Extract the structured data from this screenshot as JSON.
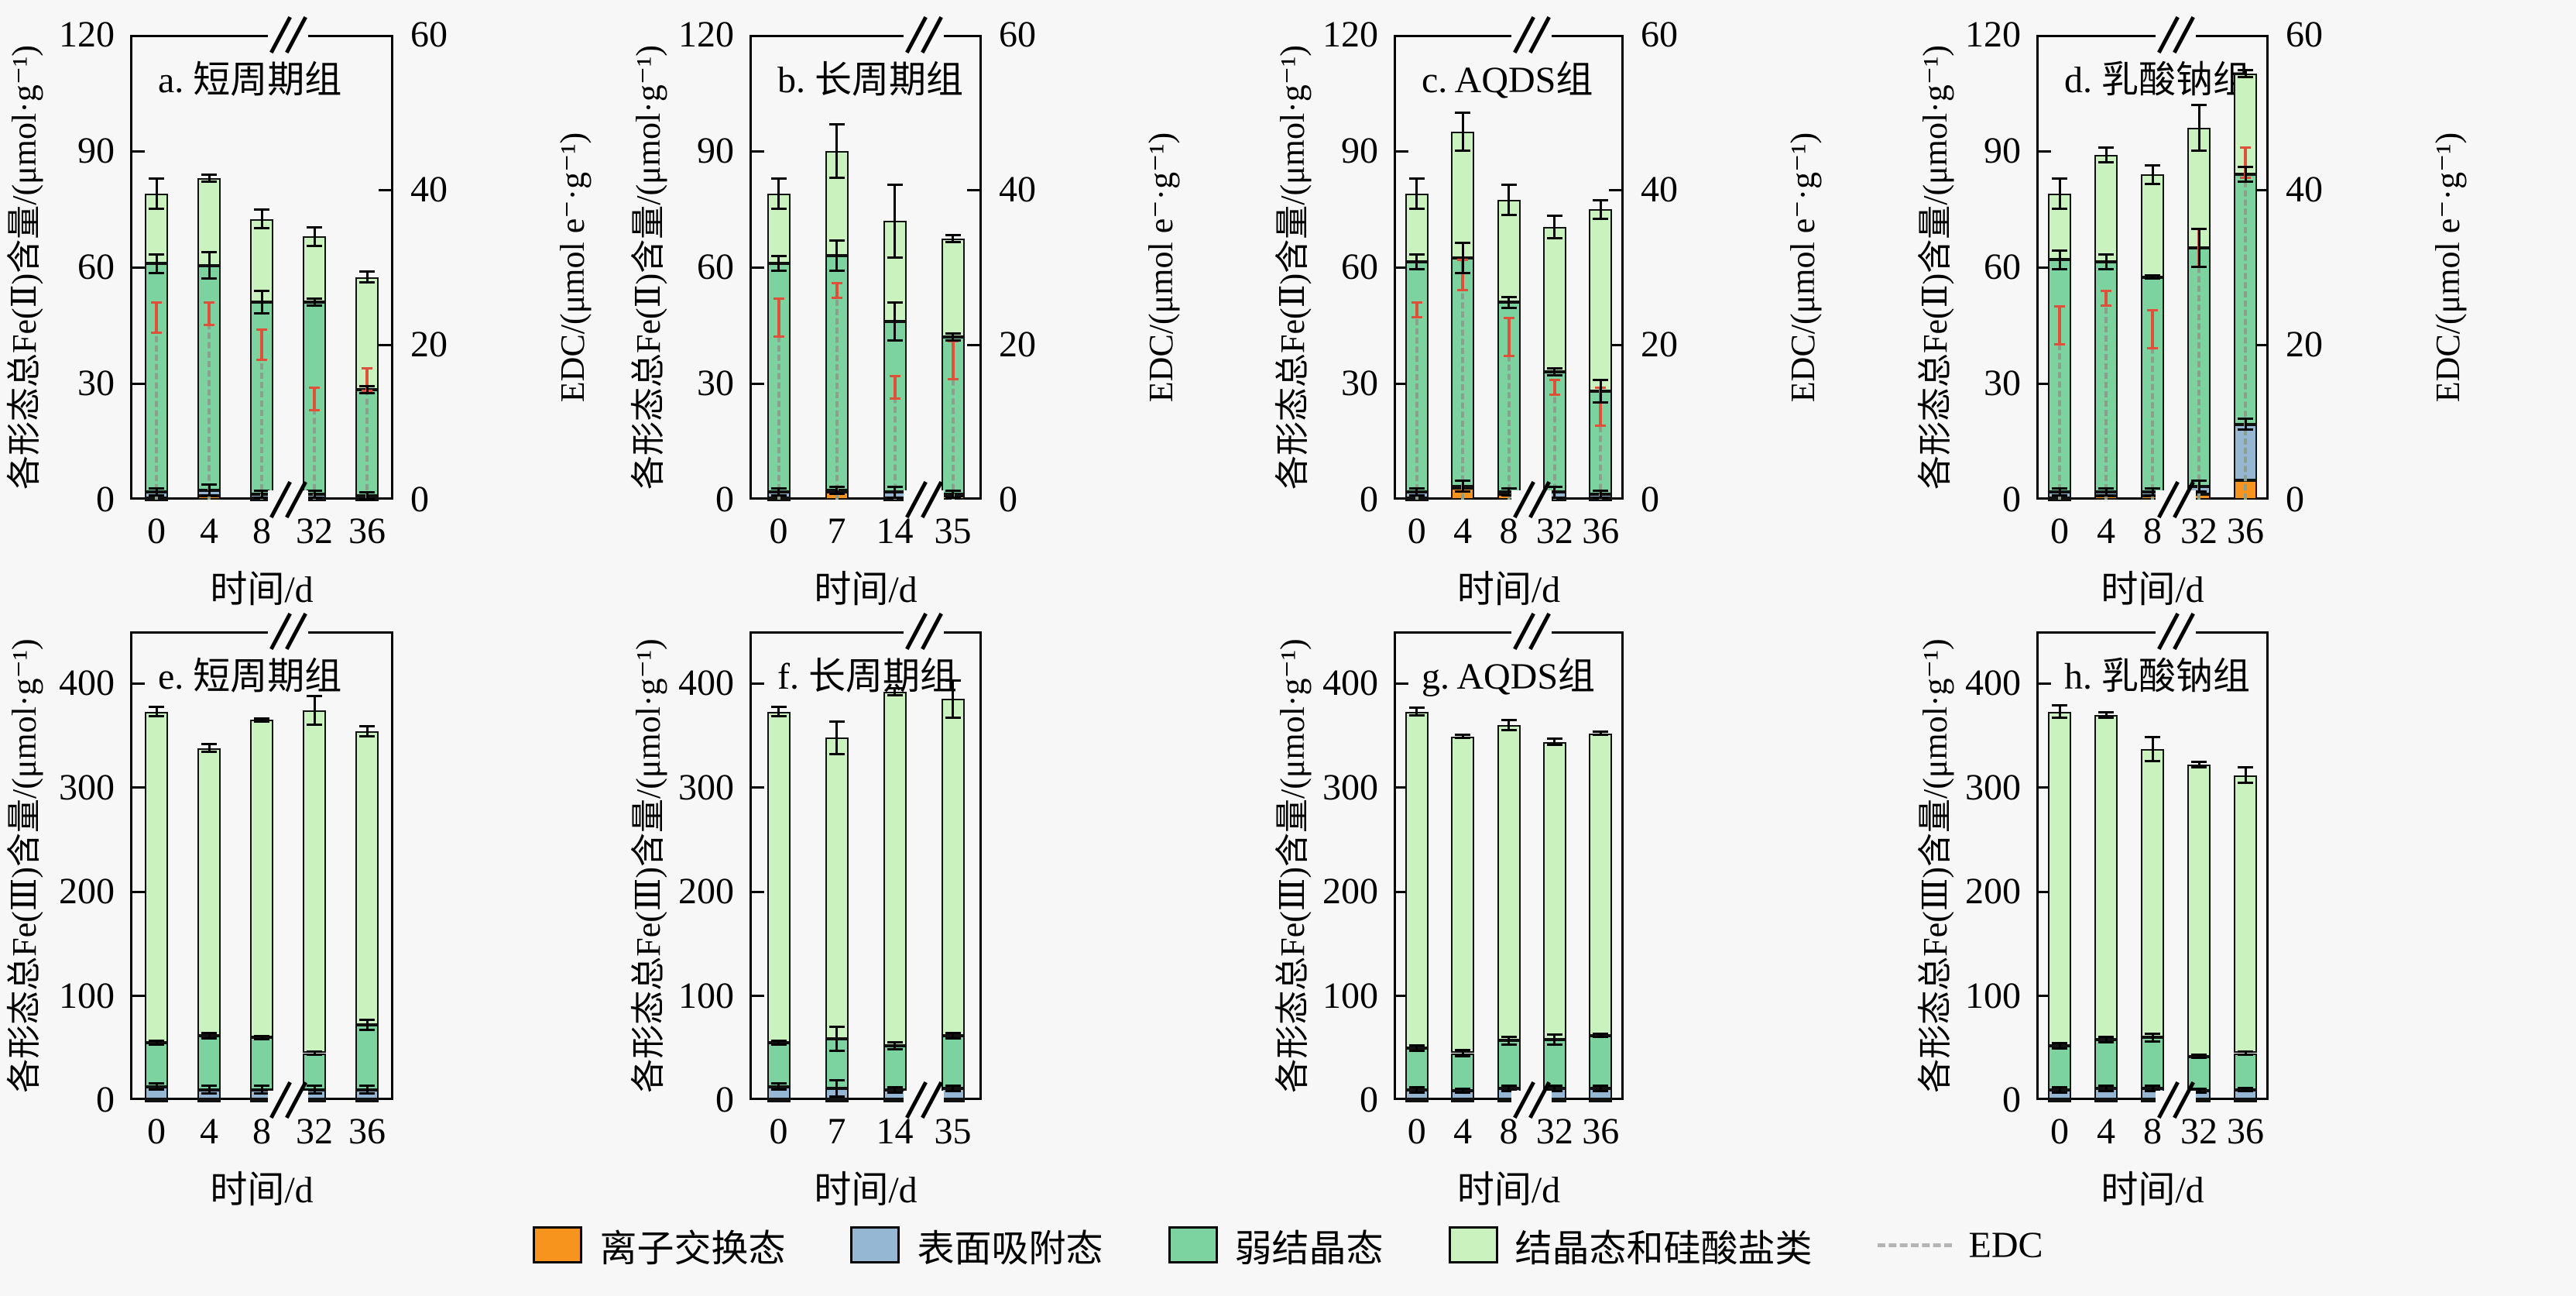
{
  "figure": {
    "background": "#f7f7f7"
  },
  "labels": {
    "xlabel": "时间/d",
    "ylabel_fe2": "各形态总Fe(Ⅱ)含量/(μmol·g⁻¹)",
    "ylabel_fe3": "各形态总Fe(Ⅲ)含量/(μmol·g⁻¹)",
    "ylabel_edc": "EDC/(μmol e⁻·g⁻¹)"
  },
  "colors": {
    "ion_exchange": "#F7941E",
    "surface_adsorbed": "#96B7D4",
    "weak_crystalline": "#7CD3A0",
    "crystalline_silicate": "#C9F2BE",
    "edc_line": "#8C9E8C",
    "edc_error": "#E05038",
    "legend_edc_dash": "#B5B5B5",
    "axis": "#000000"
  },
  "legend": {
    "items": [
      {
        "label": "离子交换态",
        "swatch": "ion_exchange"
      },
      {
        "label": "表面吸附态",
        "swatch": "surface_adsorbed"
      },
      {
        "label": "弱结晶态",
        "swatch": "weak_crystalline"
      },
      {
        "label": "结晶态和硅酸盐类",
        "swatch": "crystalline_silicate"
      },
      {
        "label": "EDC",
        "swatch": "dash"
      }
    ]
  },
  "chart_data": [
    {
      "id": "a",
      "title": "a. 短周期组",
      "row": 0,
      "col": 0,
      "type": "bar",
      "stacked": true,
      "categories": [
        "0",
        "4",
        "8",
        "32",
        "36"
      ],
      "x_axis_break_between": [
        "8",
        "32"
      ],
      "ylim": [
        0,
        120
      ],
      "yticks": [
        0,
        30,
        60,
        90,
        120
      ],
      "y2lim": [
        0,
        60
      ],
      "y2ticks": [
        0,
        20,
        40,
        60
      ],
      "series": [
        {
          "name": "离子交换态",
          "values": [
            0.5,
            1,
            0.5,
            0.5,
            0.5
          ]
        },
        {
          "name": "表面吸附态",
          "values": [
            1.5,
            1.5,
            1,
            1,
            0.5
          ]
        },
        {
          "name": "弱结晶态",
          "values": [
            59,
            58,
            49.5,
            49.5,
            27.5
          ]
        },
        {
          "name": "结晶态和硅酸盐类",
          "values": [
            18,
            22.5,
            21.5,
            17,
            29
          ]
        }
      ],
      "totals": [
        79,
        83,
        72.5,
        68,
        57.5
      ],
      "errors": {
        "total": [
          4,
          1,
          2.5,
          2.5,
          1.5
        ],
        "weak_boundary": [
          2.5,
          3.5,
          3,
          1,
          1
        ],
        "surface_boundary": [
          1,
          1.5,
          1,
          1,
          1
        ]
      },
      "edc": {
        "axis": "right",
        "values": [
          23.5,
          24,
          20,
          13,
          15.5
        ],
        "errors": [
          2,
          1.5,
          2,
          1.5,
          1.5
        ]
      }
    },
    {
      "id": "b",
      "title": "b. 长周期组",
      "row": 0,
      "col": 1,
      "type": "bar",
      "stacked": true,
      "categories": [
        "0",
        "7",
        "14",
        "35"
      ],
      "x_axis_break_between": [
        "14",
        "35"
      ],
      "ylim": [
        0,
        120
      ],
      "yticks": [
        0,
        30,
        60,
        90,
        120
      ],
      "y2lim": [
        0,
        60
      ],
      "y2ticks": [
        0,
        20,
        40,
        60
      ],
      "series": [
        {
          "name": "离子交换态",
          "values": [
            0.5,
            2,
            0.5,
            1
          ]
        },
        {
          "name": "表面吸附态",
          "values": [
            1.5,
            0.5,
            1.5,
            0.5
          ]
        },
        {
          "name": "弱结晶态",
          "values": [
            59,
            60.5,
            44,
            40.5
          ]
        },
        {
          "name": "结晶态和硅酸盐类",
          "values": [
            18,
            27,
            26,
            25.5
          ]
        }
      ],
      "totals": [
        79,
        90,
        72,
        67.5
      ],
      "errors": {
        "total": [
          4,
          7,
          9.5,
          1
        ],
        "weak_boundary": [
          2,
          4,
          5,
          1
        ],
        "surface_boundary": [
          1,
          1,
          1.5,
          1
        ]
      },
      "edc": {
        "axis": "right",
        "values": [
          23.5,
          27,
          14.5,
          18
        ],
        "errors": [
          2.5,
          1,
          1.5,
          2.5
        ]
      }
    },
    {
      "id": "c",
      "title": "c. AQDS组",
      "row": 0,
      "col": 2,
      "type": "bar",
      "stacked": true,
      "categories": [
        "0",
        "4",
        "8",
        "32",
        "36"
      ],
      "x_axis_break_between": [
        "8",
        "32"
      ],
      "ylim": [
        0,
        120
      ],
      "yticks": [
        0,
        30,
        60,
        90,
        120
      ],
      "y2lim": [
        0,
        60
      ],
      "y2ticks": [
        0,
        20,
        40,
        60
      ],
      "series": [
        {
          "name": "离子交换态",
          "values": [
            0.5,
            3,
            1.5,
            0.5,
            0.5
          ]
        },
        {
          "name": "表面吸附态",
          "values": [
            1.5,
            0.5,
            0.5,
            1.5,
            1
          ]
        },
        {
          "name": "弱结晶态",
          "values": [
            59.5,
            59,
            49,
            31,
            26.5
          ]
        },
        {
          "name": "结晶态和硅酸盐类",
          "values": [
            17.5,
            32.5,
            26.5,
            37.5,
            47
          ]
        }
      ],
      "totals": [
        79,
        95,
        77.5,
        70.5,
        75
      ],
      "errors": {
        "total": [
          4,
          5,
          4,
          3,
          2.5
        ],
        "weak_boundary": [
          2,
          4,
          1.5,
          1,
          3
        ],
        "surface_boundary": [
          1,
          1.5,
          1,
          1.5,
          1
        ]
      },
      "edc": {
        "axis": "right",
        "values": [
          24.5,
          29,
          21,
          14.5,
          12
        ],
        "errors": [
          1,
          2,
          2.5,
          1,
          2.5
        ]
      }
    },
    {
      "id": "d",
      "title": "d. 乳酸钠组",
      "row": 0,
      "col": 3,
      "type": "bar",
      "stacked": true,
      "categories": [
        "0",
        "4",
        "8",
        "32",
        "36"
      ],
      "x_axis_break_between": [
        "8",
        "32"
      ],
      "ylim": [
        0,
        120
      ],
      "yticks": [
        0,
        30,
        60,
        90,
        120
      ],
      "y2lim": [
        0,
        60
      ],
      "y2ticks": [
        0,
        20,
        40,
        60
      ],
      "series": [
        {
          "name": "离子交换态",
          "values": [
            0.5,
            1,
            1,
            1.5,
            5
          ]
        },
        {
          "name": "表面吸附态",
          "values": [
            1.5,
            1,
            1,
            2,
            14.5
          ]
        },
        {
          "name": "弱结晶态",
          "values": [
            60,
            59.5,
            55.5,
            61.5,
            64.5
          ]
        },
        {
          "name": "结晶态和硅酸盐类",
          "values": [
            17,
            27.5,
            26.5,
            31,
            26
          ]
        }
      ],
      "totals": [
        79,
        89,
        84,
        96,
        110
      ],
      "errors": {
        "total": [
          4,
          2,
          2.5,
          6,
          1
        ],
        "weak_boundary": [
          2.5,
          2,
          0.5,
          5,
          2
        ],
        "surface_boundary": [
          1,
          1,
          1,
          1.5,
          1.5
        ]
      },
      "edc": {
        "axis": "right",
        "values": [
          22.5,
          26,
          22,
          32.5,
          43.5
        ],
        "errors": [
          2.5,
          1,
          2.5,
          2.5,
          2
        ]
      }
    },
    {
      "id": "e",
      "title": "e. 短周期组",
      "row": 1,
      "col": 0,
      "type": "bar",
      "stacked": true,
      "categories": [
        "0",
        "4",
        "8",
        "32",
        "36"
      ],
      "x_axis_break_between": [
        "8",
        "32"
      ],
      "ylim": [
        0,
        450
      ],
      "yticks": [
        0,
        100,
        200,
        300,
        400
      ],
      "series": [
        {
          "name": "离子交换态",
          "values": [
            1,
            1,
            1,
            1,
            1
          ]
        },
        {
          "name": "表面吸附态",
          "values": [
            12,
            9,
            9,
            9,
            9
          ]
        },
        {
          "name": "弱结晶态",
          "values": [
            42,
            52,
            50,
            35,
            62
          ]
        },
        {
          "name": "结晶态和硅酸盐类",
          "values": [
            318,
            276,
            305,
            329,
            282
          ]
        }
      ],
      "totals": [
        373,
        338,
        365,
        374,
        354
      ],
      "errors": {
        "total": [
          5,
          4,
          2,
          14,
          5
        ],
        "weak_boundary": [
          2,
          3,
          2,
          2,
          5
        ],
        "surface_boundary": [
          3,
          4,
          4,
          4,
          4
        ]
      }
    },
    {
      "id": "f",
      "title": "f. 长周期组",
      "row": 1,
      "col": 1,
      "type": "bar",
      "stacked": true,
      "categories": [
        "0",
        "7",
        "14",
        "35"
      ],
      "x_axis_break_between": [
        "14",
        "35"
      ],
      "ylim": [
        0,
        450
      ],
      "yticks": [
        0,
        100,
        200,
        300,
        400
      ],
      "series": [
        {
          "name": "离子交换态",
          "values": [
            1,
            1,
            1,
            1
          ]
        },
        {
          "name": "表面吸附态",
          "values": [
            12,
            10,
            9,
            10
          ]
        },
        {
          "name": "弱结晶态",
          "values": [
            42,
            48,
            42,
            51
          ]
        },
        {
          "name": "结晶态和硅酸盐类",
          "values": [
            318,
            289,
            340,
            323
          ]
        }
      ],
      "totals": [
        373,
        348,
        392,
        385
      ],
      "errors": {
        "total": [
          5,
          16,
          4,
          18
        ],
        "weak_boundary": [
          2,
          12,
          4,
          3
        ],
        "surface_boundary": [
          3,
          8,
          3,
          3
        ]
      }
    },
    {
      "id": "g",
      "title": "g. AQDS组",
      "row": 1,
      "col": 2,
      "type": "bar",
      "stacked": true,
      "categories": [
        "0",
        "4",
        "8",
        "32",
        "36"
      ],
      "x_axis_break_between": [
        "8",
        "32"
      ],
      "ylim": [
        0,
        450
      ],
      "yticks": [
        0,
        100,
        200,
        300,
        400
      ],
      "series": [
        {
          "name": "离子交换态",
          "values": [
            1,
            1,
            1,
            1,
            1
          ]
        },
        {
          "name": "表面吸附态",
          "values": [
            9,
            8,
            10,
            10,
            10
          ]
        },
        {
          "name": "弱结晶态",
          "values": [
            40,
            36,
            46,
            47,
            51
          ]
        },
        {
          "name": "结晶态和硅酸盐类",
          "values": [
            323,
            304,
            303,
            286,
            290
          ]
        }
      ],
      "totals": [
        373,
        349,
        360,
        344,
        352
      ],
      "errors": {
        "total": [
          4,
          2,
          5,
          3,
          2
        ],
        "weak_boundary": [
          3,
          3,
          4,
          5,
          2
        ],
        "surface_boundary": [
          3,
          2,
          3,
          3,
          3
        ]
      }
    },
    {
      "id": "h",
      "title": "h. 乳酸钠组",
      "row": 1,
      "col": 3,
      "type": "bar",
      "stacked": true,
      "categories": [
        "0",
        "4",
        "8",
        "32",
        "36"
      ],
      "x_axis_break_between": [
        "8",
        "32"
      ],
      "ylim": [
        0,
        450
      ],
      "yticks": [
        0,
        100,
        200,
        300,
        400
      ],
      "series": [
        {
          "name": "离子交换态",
          "values": [
            1,
            1,
            1,
            1,
            1
          ]
        },
        {
          "name": "表面吸附态",
          "values": [
            9,
            10,
            10,
            8,
            9
          ]
        },
        {
          "name": "弱结晶态",
          "values": [
            42,
            47,
            49,
            33,
            35
          ]
        },
        {
          "name": "结晶态和硅酸盐类",
          "values": [
            321,
            312,
            277,
            280,
            267
          ]
        }
      ],
      "totals": [
        373,
        370,
        337,
        322,
        312
      ],
      "errors": {
        "total": [
          6,
          3,
          12,
          3,
          8
        ],
        "weak_boundary": [
          3,
          3,
          4,
          2,
          2
        ],
        "surface_boundary": [
          3,
          3,
          3,
          2,
          2
        ]
      }
    }
  ]
}
